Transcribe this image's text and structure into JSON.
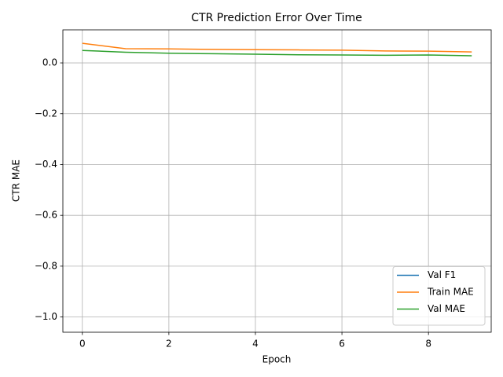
{
  "chart_data": {
    "type": "line",
    "title": "CTR Prediction Error Over Time",
    "xlabel": "Epoch",
    "ylabel": "CTR MAE",
    "x": [
      0,
      1,
      2,
      3,
      4,
      5,
      6,
      7,
      8,
      9
    ],
    "series": [
      {
        "name": "Val F1",
        "color": "#1f77b4",
        "values": [
          null,
          null,
          null,
          null,
          null,
          null,
          null,
          null,
          null,
          null
        ]
      },
      {
        "name": "Train MAE",
        "color": "#ff7f0e",
        "values": [
          0.077,
          0.056,
          0.055,
          0.053,
          0.052,
          0.051,
          0.05,
          0.047,
          0.046,
          0.043
        ]
      },
      {
        "name": "Val MAE",
        "color": "#2ca02c",
        "values": [
          0.049,
          0.042,
          0.038,
          0.036,
          0.034,
          0.032,
          0.031,
          0.03,
          0.031,
          0.028
        ]
      }
    ],
    "xlim": [
      -0.45,
      9.45
    ],
    "xticks": [
      0,
      2,
      4,
      6,
      8
    ],
    "ylim": [
      -1.06,
      0.13
    ],
    "yticks": [
      {
        "value": -1.0,
        "label": "−1.0"
      },
      {
        "value": -0.8,
        "label": "−0.8"
      },
      {
        "value": -0.6,
        "label": "−0.6"
      },
      {
        "value": -0.4,
        "label": "−0.4"
      },
      {
        "value": -0.2,
        "label": "−0.2"
      },
      {
        "value": 0.0,
        "label": "0.0"
      }
    ],
    "grid": true,
    "legend": "lower right"
  }
}
